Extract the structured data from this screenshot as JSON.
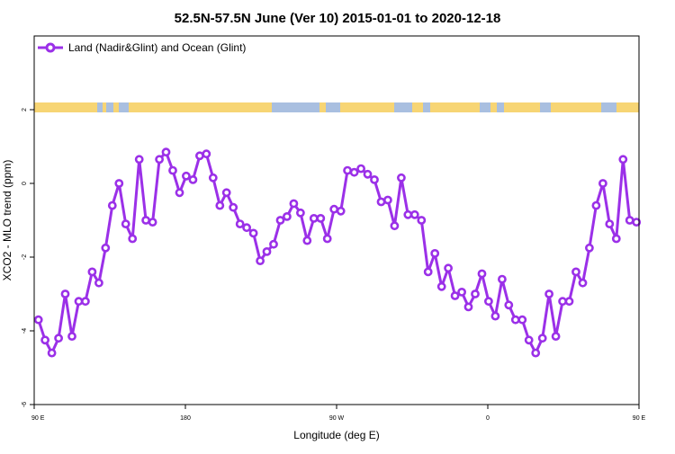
{
  "chart_data": {
    "type": "line",
    "title": "52.5N-57.5N June (Ver 10)   2015-01-01 to 2020-12-18",
    "xlabel": "Longitude (deg E)",
    "ylabel": "XCO2 - MLO trend (ppm)",
    "xlim": [
      90,
      450
    ],
    "ylim": [
      -6,
      4
    ],
    "grid": false,
    "legend_position": "top-left",
    "x_ticks": [
      {
        "value": 90,
        "label": "90 E"
      },
      {
        "value": 180,
        "label": "180"
      },
      {
        "value": 270,
        "label": "90 W"
      },
      {
        "value": 360,
        "label": "0"
      },
      {
        "value": 450,
        "label": "90 E"
      },
      {
        "value": 540,
        "label": "180"
      }
    ],
    "y_ticks": [
      {
        "value": -6,
        "label": "-6"
      },
      {
        "value": -4,
        "label": "-4"
      },
      {
        "value": -2,
        "label": "-2"
      },
      {
        "value": 0,
        "label": "0"
      },
      {
        "value": 2,
        "label": "2"
      }
    ],
    "series": [
      {
        "name": "Land (Nadir&Glint) and Ocean (Glint)",
        "color": "#9b30e8",
        "points": [
          [
            92.5,
            -3.7
          ],
          [
            96.5,
            -4.25
          ],
          [
            100.5,
            -4.6
          ],
          [
            104.5,
            -4.2
          ],
          [
            108.5,
            -3.0
          ],
          [
            112.5,
            -4.15
          ],
          [
            116.5,
            -3.2
          ],
          [
            120.5,
            -3.2
          ],
          [
            124.5,
            -2.4
          ],
          [
            128.5,
            -2.7
          ],
          [
            132.5,
            -1.75
          ],
          [
            136.5,
            -0.6
          ],
          [
            140.5,
            0.0
          ],
          [
            144.5,
            -1.1
          ],
          [
            148.5,
            -1.5
          ],
          [
            152.5,
            0.65
          ],
          [
            156.5,
            -1.0
          ],
          [
            160.5,
            -1.05
          ],
          [
            164.5,
            0.65
          ],
          [
            168.5,
            0.85
          ],
          [
            172.5,
            0.35
          ],
          [
            176.5,
            -0.25
          ],
          [
            180.5,
            0.2
          ],
          [
            184.5,
            0.1
          ],
          [
            188.5,
            0.75
          ],
          [
            192.5,
            0.8
          ],
          [
            196.5,
            0.15
          ],
          [
            200.5,
            -0.6
          ],
          [
            204.5,
            -0.25
          ],
          [
            208.5,
            -0.65
          ],
          [
            212.5,
            -1.1
          ],
          [
            216.5,
            -1.2
          ],
          [
            220.5,
            -1.35
          ],
          [
            224.5,
            -2.1
          ],
          [
            228.5,
            -1.85
          ],
          [
            232.5,
            -1.65
          ],
          [
            236.5,
            -1.0
          ],
          [
            240.5,
            -0.9
          ],
          [
            244.5,
            -0.55
          ],
          [
            248.5,
            -0.8
          ],
          [
            252.5,
            -1.55
          ],
          [
            256.5,
            -0.95
          ],
          [
            260.5,
            -0.95
          ],
          [
            264.5,
            -1.5
          ],
          [
            268.5,
            -0.7
          ],
          [
            272.5,
            -0.75
          ],
          [
            276.5,
            0.35
          ],
          [
            280.5,
            0.3
          ],
          [
            284.5,
            0.4
          ],
          [
            288.5,
            0.25
          ],
          [
            292.5,
            0.1
          ],
          [
            296.5,
            -0.5
          ],
          [
            300.5,
            -0.45
          ],
          [
            304.5,
            -1.15
          ],
          [
            308.5,
            0.15
          ],
          [
            312.5,
            -0.85
          ],
          [
            316.5,
            -0.85
          ],
          [
            320.5,
            -1.0
          ],
          [
            324.5,
            -2.4
          ],
          [
            328.5,
            -1.9
          ],
          [
            332.5,
            -2.8
          ],
          [
            336.5,
            -2.3
          ],
          [
            340.5,
            -3.05
          ],
          [
            344.5,
            -2.95
          ],
          [
            348.5,
            -3.35
          ],
          [
            352.5,
            -3.0
          ],
          [
            356.5,
            -2.45
          ],
          [
            360.5,
            -3.2
          ],
          [
            364.5,
            -3.6
          ],
          [
            368.5,
            -2.6
          ],
          [
            372.5,
            -3.3
          ],
          [
            376.5,
            -3.7
          ],
          [
            380.5,
            -3.7
          ],
          [
            384.5,
            -4.25
          ],
          [
            388.5,
            -4.6
          ],
          [
            392.5,
            -4.2
          ],
          [
            396.5,
            -3.0
          ],
          [
            400.5,
            -4.15
          ],
          [
            404.5,
            -3.2
          ],
          [
            408.5,
            -3.2
          ],
          [
            412.5,
            -2.4
          ],
          [
            416.5,
            -2.7
          ],
          [
            420.5,
            -1.75
          ],
          [
            424.5,
            -0.6
          ],
          [
            428.5,
            0.0
          ],
          [
            432.5,
            -1.1
          ],
          [
            436.5,
            -1.5
          ],
          [
            440.5,
            0.65
          ],
          [
            444.5,
            -1.0
          ],
          [
            448.5,
            -1.05
          ]
        ]
      }
    ]
  }
}
